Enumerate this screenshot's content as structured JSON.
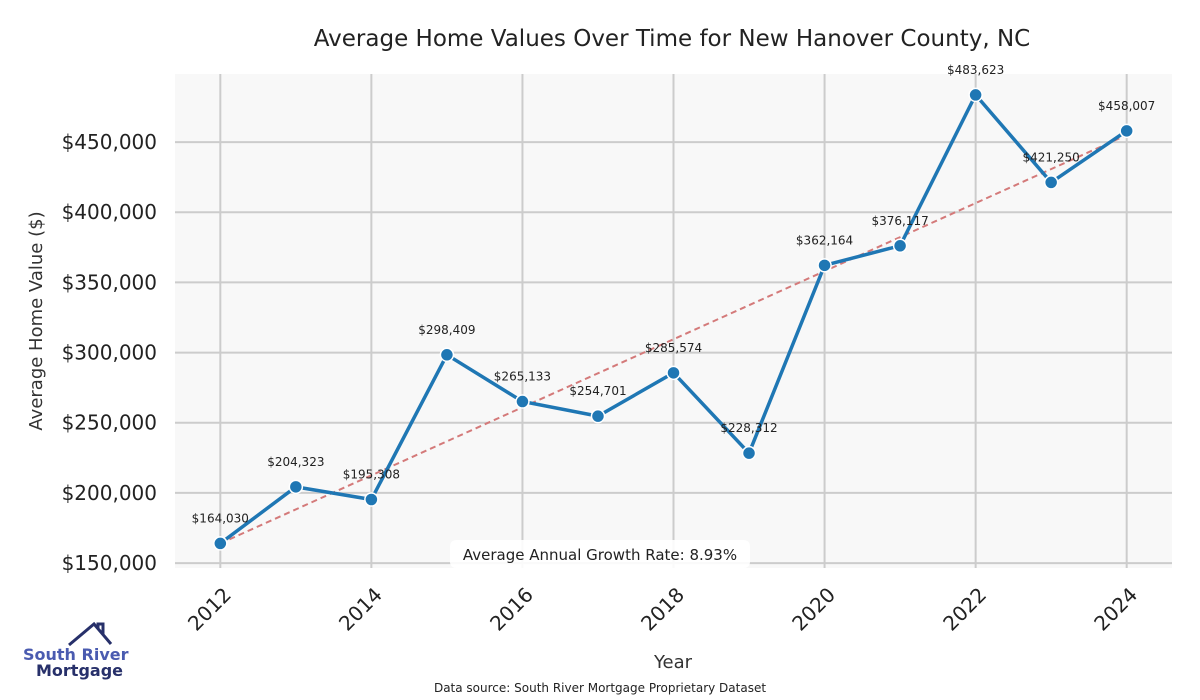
{
  "chart_data": {
    "type": "line",
    "title": "Average Home Values Over Time for New Hanover County, NC",
    "xlabel": "Year",
    "ylabel": "Average Home Value ($)",
    "x": [
      2012,
      2013,
      2014,
      2015,
      2016,
      2017,
      2018,
      2019,
      2020,
      2021,
      2022,
      2023,
      2024
    ],
    "series": [
      {
        "name": "Average Home Value",
        "values": [
          164030,
          204323,
          195308,
          298409,
          265133,
          254701,
          285574,
          228312,
          362164,
          376117,
          483623,
          421250,
          458007
        ],
        "color": "#1f77b4"
      }
    ],
    "data_labels": [
      "$164,030",
      "$204,323",
      "$195,308",
      "$298,409",
      "$265,133",
      "$254,701",
      "$285,574",
      "$228,312",
      "$362,164",
      "$376,117",
      "$483,623",
      "$421,250",
      "$458,007"
    ],
    "trend": {
      "start": [
        2012,
        164000
      ],
      "end": [
        2024,
        455000
      ],
      "color": "#d47a7a"
    },
    "xticks": [
      "2012",
      "2014",
      "2016",
      "2018",
      "2020",
      "2022",
      "2024"
    ],
    "yticks": [
      "$150,000",
      "$200,000",
      "$250,000",
      "$300,000",
      "$350,000",
      "$400,000",
      "$450,000"
    ],
    "ytick_values": [
      150000,
      200000,
      250000,
      300000,
      350000,
      400000,
      450000
    ],
    "xlim": [
      2011.4,
      2024.6
    ],
    "ylim": [
      146500,
      498500
    ],
    "grid": true,
    "annotation": "Average Annual Growth Rate: 8.93%",
    "source": "Data source: South River Mortgage Proprietary Dataset"
  },
  "logo": {
    "line1": "South River",
    "line2": "Mortgage"
  }
}
